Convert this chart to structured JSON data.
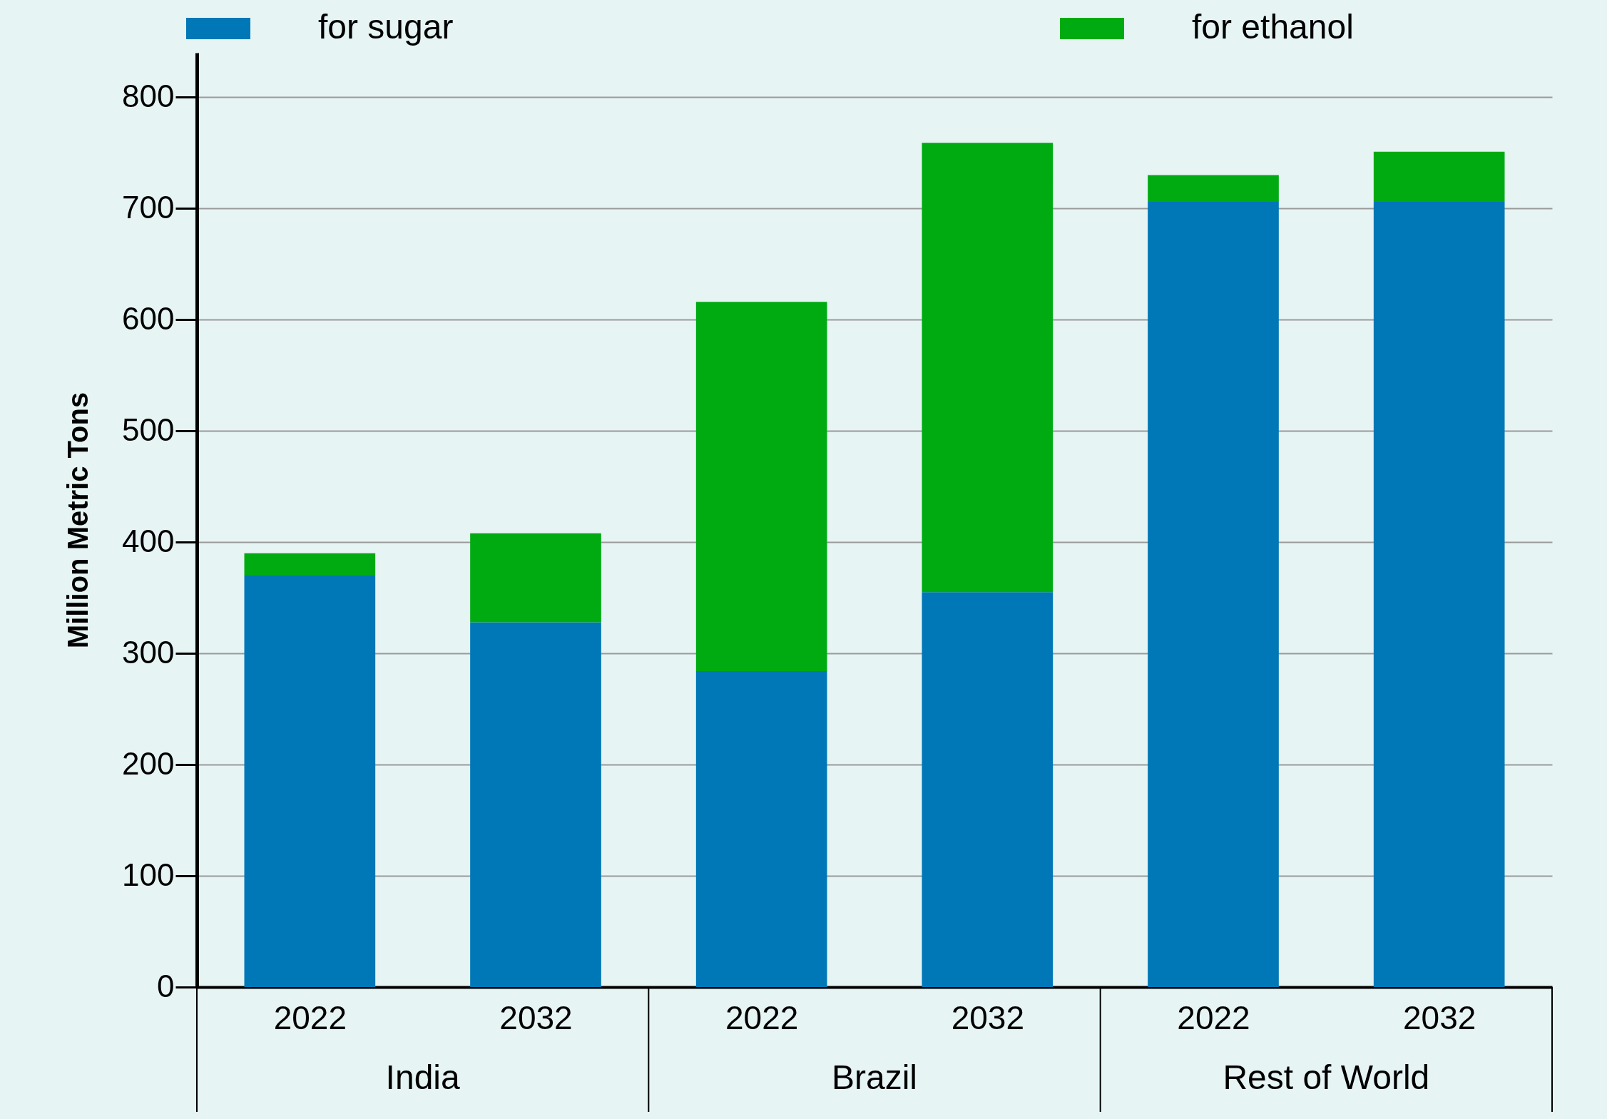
{
  "chart_data": {
    "type": "bar",
    "stacked": true,
    "ylabel": "Million Metric Tons",
    "categories": [
      "2022",
      "2032",
      "2022",
      "2032",
      "2022",
      "2032"
    ],
    "annotations": [
      "India",
      "Brazil",
      "Rest of World"
    ],
    "series": [
      {
        "name": "for sugar",
        "color": "#0077b6",
        "values": [
          370,
          328,
          284,
          355,
          706,
          706
        ]
      },
      {
        "name": "for ethanol",
        "color": "#00ab12",
        "values": [
          20,
          80,
          332,
          404,
          24,
          45
        ]
      }
    ],
    "ylim": [
      0,
      840
    ],
    "yticks": [
      0,
      100,
      200,
      300,
      400,
      500,
      600,
      700,
      800
    ],
    "grid": "y",
    "legend": "top"
  }
}
